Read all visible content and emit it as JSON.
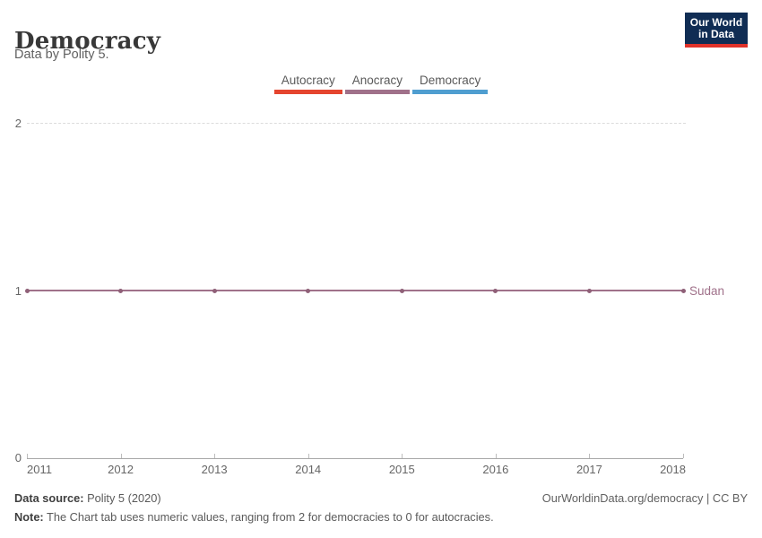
{
  "header": {
    "title": "Democracy",
    "subtitle": "Data by Polity 5."
  },
  "logo": {
    "line1": "Our World",
    "line2": "in Data",
    "bg_color": "#102d54",
    "accent_color": "#e0322a"
  },
  "legend": {
    "items": [
      {
        "label": "Autocracy",
        "color": "#e5452f"
      },
      {
        "label": "Anocracy",
        "color": "#a0718a"
      },
      {
        "label": "Democracy",
        "color": "#4f9ed0"
      }
    ]
  },
  "chart_data": {
    "type": "line",
    "title": "Democracy",
    "subtitle": "Data by Polity 5.",
    "x": [
      2011,
      2012,
      2013,
      2014,
      2015,
      2016,
      2017,
      2018
    ],
    "series": [
      {
        "name": "Sudan",
        "category": "Anocracy",
        "color": "#a0718a",
        "dot_color": "#8f6078",
        "values": [
          1,
          1,
          1,
          1,
          1,
          1,
          1,
          1
        ]
      }
    ],
    "xlabel": "",
    "ylabel": "",
    "ylim": [
      0,
      2
    ],
    "yticks": [
      "2",
      "1",
      "0"
    ],
    "xtick_labels": [
      "2011",
      "2012",
      "2013",
      "2014",
      "2015",
      "2016",
      "2017",
      "2018"
    ],
    "grid": "dashed-horizontal",
    "legend_position": "top-center",
    "end_label": "Sudan"
  },
  "footer": {
    "source_label": "Data source:",
    "source_value": " Polity 5 (2020)",
    "note_label": "Note:",
    "note_value": " The Chart tab uses numeric values, ranging from 2 for democracies to 0 for autocracies.",
    "attribution": "OurWorldinData.org/democracy | CC BY"
  }
}
